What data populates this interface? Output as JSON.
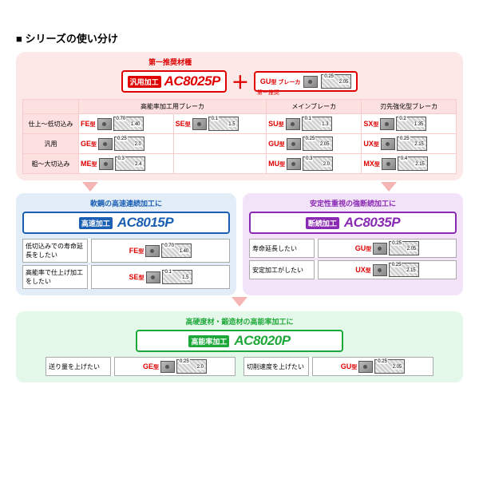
{
  "title": "シリーズの使い分け",
  "colors": {
    "red": "#e00000",
    "blue": "#1a5fb4",
    "purple": "#8a2ab4",
    "green": "#1fa83a",
    "pink_bg": "#fde8e8"
  },
  "top": {
    "rec_label": "第一推奨材種",
    "main_tag": "汎用加工",
    "main_grade": "AC8025P",
    "plus": "＋",
    "gu_label": "GU",
    "gu_sup": "型 ブレーカ",
    "gu_rec": "第一推奨",
    "gu_dim1": "0.25",
    "gu_dim2": "2.05",
    "grid": {
      "col_headers": [
        "高能率加工用ブレーカ",
        "メインブレーカ",
        "刃先強化型ブレーカ"
      ],
      "rows": [
        {
          "head": "仕上～低切込み",
          "cells": [
            {
              "b": "FE",
              "d1": "0.70",
              "d2": "1.40"
            },
            {
              "b": "SE",
              "d1": "0.1",
              "d2": "1.5"
            },
            {
              "b": "SU",
              "d1": "0.1",
              "d2": "1.3"
            },
            {
              "b": "SX",
              "d1": "0.2",
              "d2": "1.35"
            }
          ]
        },
        {
          "head": "汎用",
          "cells": [
            {
              "b": "GE",
              "d1": "0.25",
              "d2": "2.0"
            },
            null,
            {
              "b": "GU",
              "d1": "0.25",
              "d2": "2.05"
            },
            {
              "b": "UX",
              "d1": "0.25",
              "d2": "2.15"
            }
          ]
        },
        {
          "head": "粗～大切込み",
          "cells": [
            {
              "b": "ME",
              "d1": "0.3",
              "d2": "2.4"
            },
            null,
            {
              "b": "MU",
              "d1": "0.3",
              "d2": "2.0"
            },
            {
              "b": "MX",
              "d1": "0.4",
              "d2": "2.15"
            }
          ]
        }
      ]
    }
  },
  "mid": {
    "blue": {
      "title": "軟鋼の高速連続加工に",
      "tag": "高速加工",
      "grade": "AC8015P",
      "rows": [
        {
          "desc": "低切込みでの寿命延長をしたい",
          "b": "FE",
          "d1": "0.70",
          "d2": "1.40"
        },
        {
          "desc": "高能率で仕上げ加工をしたい",
          "b": "SE",
          "d1": "0.1",
          "d2": "1.5"
        }
      ]
    },
    "purple": {
      "title": "安定性重視の強断続加工に",
      "tag": "断続加工",
      "grade": "AC8035P",
      "rows": [
        {
          "desc": "寿命延長したい",
          "b": "GU",
          "d1": "0.25",
          "d2": "2.05"
        },
        {
          "desc": "安定加工がしたい",
          "b": "UX",
          "d1": "0.25",
          "d2": "2.15"
        }
      ]
    }
  },
  "bottom": {
    "title": "高硬度材・鍛造材の高能率加工に",
    "tag": "高能率加工",
    "grade": "AC8020P",
    "rows": [
      {
        "desc": "送り量を上げたい",
        "b": "GE",
        "d1": "0.25",
        "d2": "2.0"
      },
      {
        "desc": "切削速度を上げたい",
        "b": "GU",
        "d1": "0.25",
        "d2": "2.05"
      }
    ]
  },
  "sup_type": "型"
}
